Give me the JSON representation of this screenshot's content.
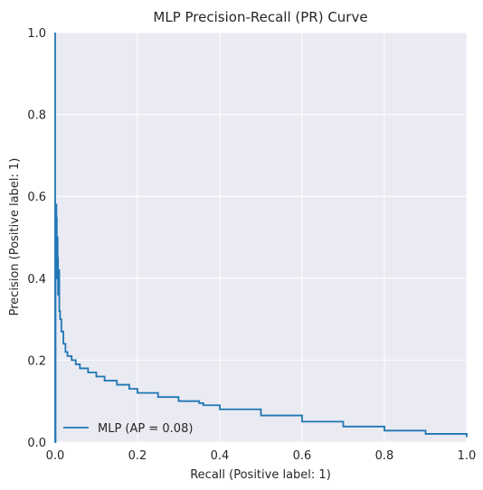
{
  "chart_data": {
    "type": "line",
    "title": "MLP Precision-Recall (PR) Curve",
    "xlabel": "Recall (Positive label: 1)",
    "ylabel": "Precision (Positive label: 1)",
    "xlim": [
      0,
      1
    ],
    "ylim": [
      0,
      1
    ],
    "x_ticks": [
      "0.0",
      "0.2",
      "0.4",
      "0.6",
      "0.8",
      "1.0"
    ],
    "y_ticks": [
      "0.0",
      "0.2",
      "0.4",
      "0.6",
      "0.8",
      "1.0"
    ],
    "grid": true,
    "legend_position": "bottom-left",
    "series": [
      {
        "name": "MLP (AP = 0.08)",
        "color": "#1f77b4",
        "x": [
          0.0,
          0.0,
          0.001,
          0.002,
          0.003,
          0.004,
          0.004,
          0.005,
          0.006,
          0.006,
          0.007,
          0.008,
          0.01,
          0.012,
          0.015,
          0.02,
          0.025,
          0.03,
          0.04,
          0.05,
          0.06,
          0.08,
          0.1,
          0.12,
          0.15,
          0.18,
          0.2,
          0.25,
          0.3,
          0.35,
          0.36,
          0.4,
          0.5,
          0.6,
          0.7,
          0.8,
          0.9,
          1.0
        ],
        "y": [
          1.0,
          0.0,
          0.52,
          0.58,
          0.46,
          0.55,
          0.4,
          0.5,
          0.42,
          0.45,
          0.36,
          0.42,
          0.32,
          0.3,
          0.27,
          0.24,
          0.22,
          0.21,
          0.2,
          0.19,
          0.18,
          0.17,
          0.16,
          0.15,
          0.14,
          0.13,
          0.12,
          0.11,
          0.1,
          0.095,
          0.09,
          0.08,
          0.065,
          0.05,
          0.038,
          0.028,
          0.02,
          0.012
        ]
      }
    ]
  }
}
